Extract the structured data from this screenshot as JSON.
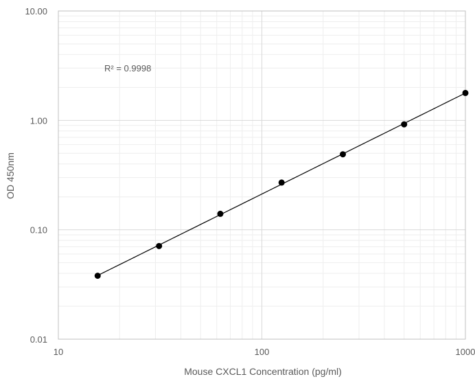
{
  "chart_data": {
    "type": "scatter",
    "xlabel": "Mouse CXCL1 Concentration (pg/ml)",
    "ylabel": "OD 450nm",
    "x_scale": "log",
    "y_scale": "log",
    "xlim": [
      10,
      1000
    ],
    "ylim": [
      0.01,
      10
    ],
    "x_ticks": [
      "10",
      "100",
      "1000"
    ],
    "y_ticks": [
      "0.01",
      "0.10",
      "1.00",
      "10.00"
    ],
    "grid": true,
    "legend": "none",
    "annotation": "R² = 0.9998",
    "trendline": "power fit",
    "series": [
      {
        "x": [
          15.6,
          31.25,
          62.5,
          125,
          250,
          500,
          1000
        ],
        "y": [
          0.038,
          0.071,
          0.14,
          0.27,
          0.49,
          0.92,
          1.78
        ]
      }
    ],
    "colors": {
      "points": "#000000",
      "line": "#000000",
      "grid_major": "#d9d9d9",
      "grid_minor": "#eeeeee",
      "text": "#595959"
    }
  }
}
